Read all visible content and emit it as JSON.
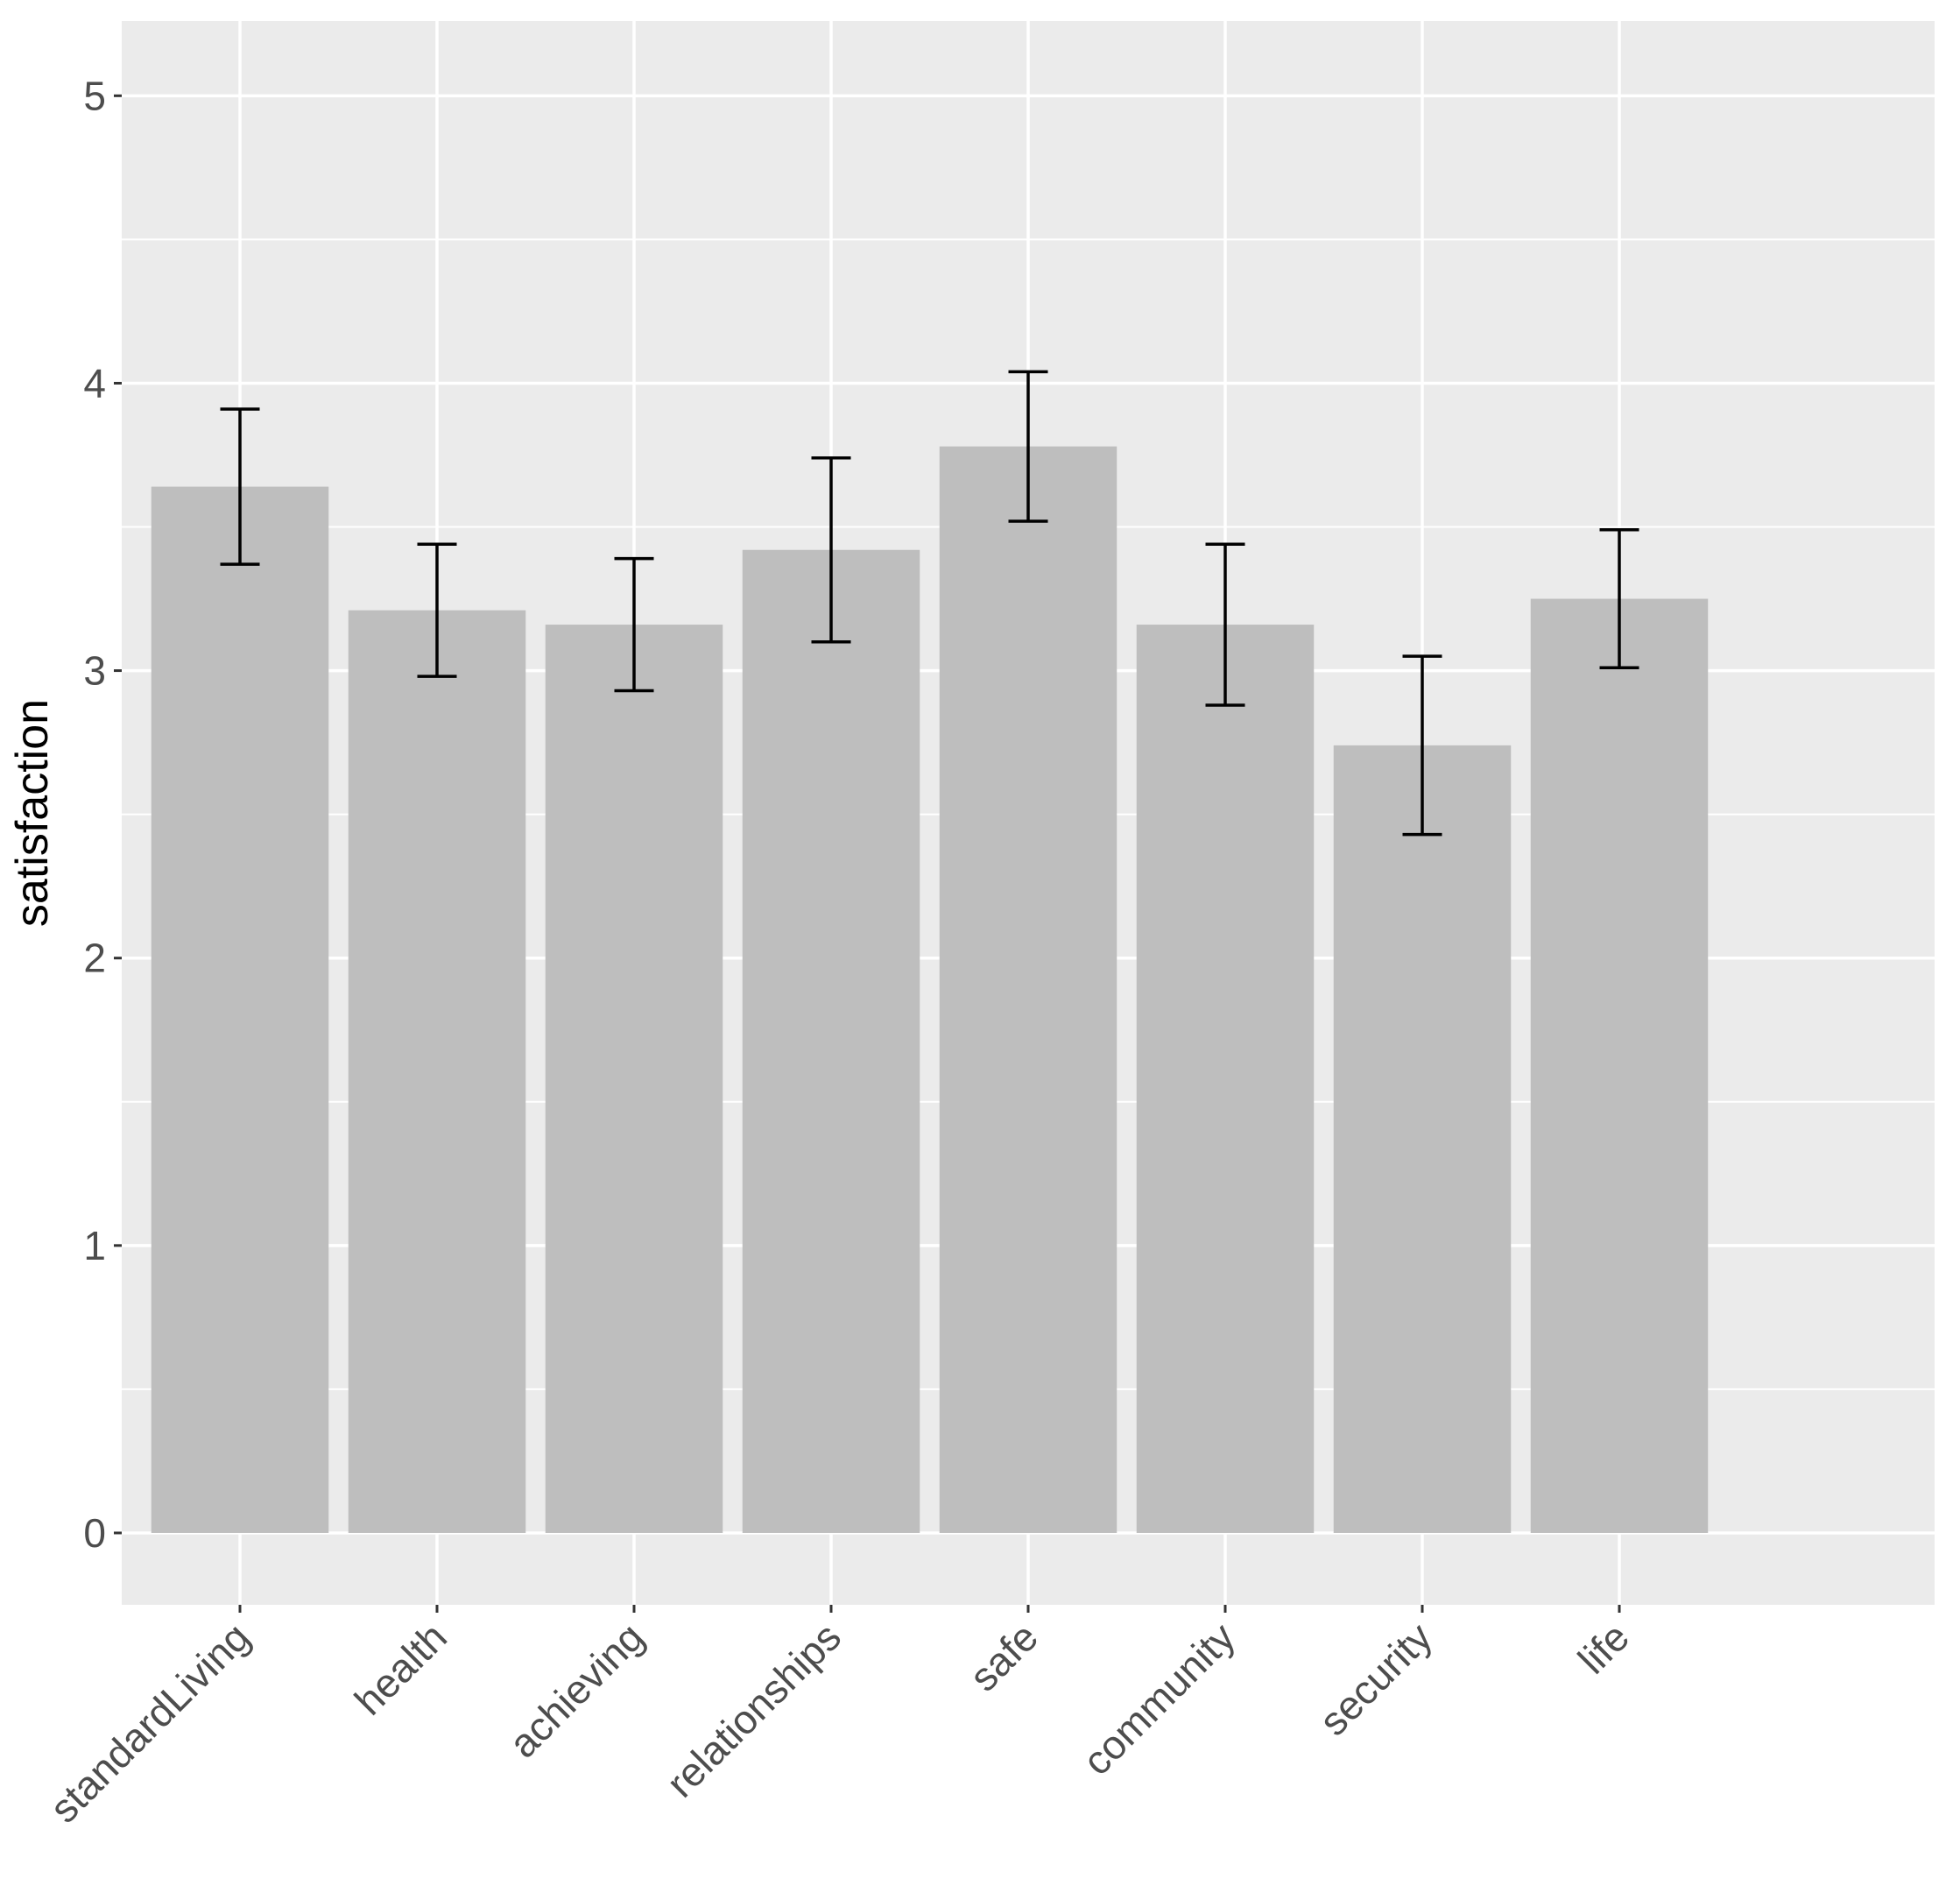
{
  "chart_data": {
    "type": "bar",
    "y_label": "satisfaction",
    "categories": [
      "standardLiving",
      "health",
      "achieving",
      "relationships",
      "safe",
      "community",
      "security",
      "life"
    ],
    "values": [
      3.64,
      3.21,
      3.16,
      3.42,
      3.78,
      3.16,
      2.74,
      3.25
    ],
    "errors": [
      0.27,
      0.23,
      0.23,
      0.32,
      0.26,
      0.28,
      0.31,
      0.24
    ],
    "color": "#bebebe",
    "error_color": "#000000",
    "ylim": [
      -0.25,
      5.26
    ],
    "yticks": [
      0,
      1,
      2,
      3,
      4,
      5
    ],
    "minor_yticks": [
      0.5,
      1.5,
      2.5,
      3.5,
      4.5
    ],
    "grid": true
  }
}
